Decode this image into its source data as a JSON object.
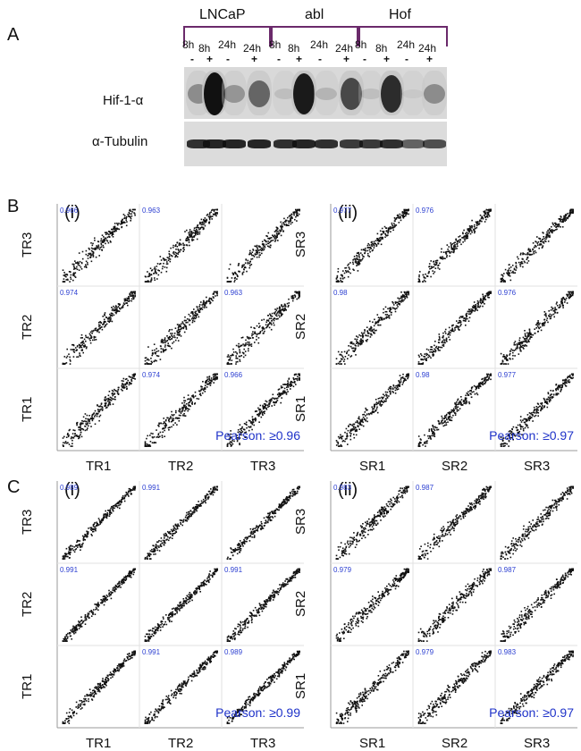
{
  "panel_a": {
    "letter": "A",
    "groups": [
      "LNCaP",
      "abl",
      "Hof"
    ],
    "times": [
      "8h",
      "8h",
      "24h",
      "24h",
      "8h",
      "8h",
      "24h",
      "24h",
      "8h",
      "8h",
      "24h",
      "24h"
    ],
    "signs": [
      "-",
      "+",
      "-",
      "+",
      "-",
      "+",
      "-",
      "+",
      "-",
      "+",
      "-",
      "+"
    ],
    "bands": [
      "Hif-1-α",
      "α-Tubulin"
    ],
    "hif_intensity": [
      0.35,
      1.0,
      0.3,
      0.55,
      0.1,
      0.95,
      0.15,
      0.7,
      0.1,
      0.85,
      0.05,
      0.35
    ],
    "tubulin_intensity": [
      0.85,
      0.9,
      0.9,
      0.9,
      0.85,
      0.9,
      0.85,
      0.8,
      0.8,
      0.85,
      0.6,
      0.7
    ]
  },
  "panel_b": {
    "letter": "B",
    "colors": {
      "values": "#2c3fd1",
      "points": "#111111"
    },
    "matrices": [
      {
        "label": "(i)",
        "vars": [
          "TR1",
          "TR2",
          "TR3"
        ],
        "r": {
          "1-2": "0.974",
          "1-3": "0.966",
          "2-3": "0.963"
        },
        "pearson": "Pearson: ≥0.96",
        "spread": 0.12
      },
      {
        "label": "(ii)",
        "vars": [
          "SR1",
          "SR2",
          "SR3"
        ],
        "r": {
          "1-2": "0.98",
          "1-3": "0.977",
          "2-3": "0.976"
        },
        "pearson": "Pearson: ≥0.97",
        "spread": 0.1
      }
    ]
  },
  "panel_c": {
    "letter": "C",
    "matrices": [
      {
        "label": "(i)",
        "vars": [
          "TR1",
          "TR2",
          "TR3"
        ],
        "r": {
          "1-2": "0.991",
          "1-3": "0.989",
          "2-3": "0.991"
        },
        "pearson": "Pearson: ≥0.99",
        "spread": 0.07
      },
      {
        "label": "(ii)",
        "vars": [
          "SR1",
          "SR2",
          "SR3"
        ],
        "r": {
          "1-2": "0.979",
          "1-3": "0.983",
          "2-3": "0.987"
        },
        "pearson": "Pearson: ≥0.97",
        "spread": 0.1
      }
    ]
  }
}
